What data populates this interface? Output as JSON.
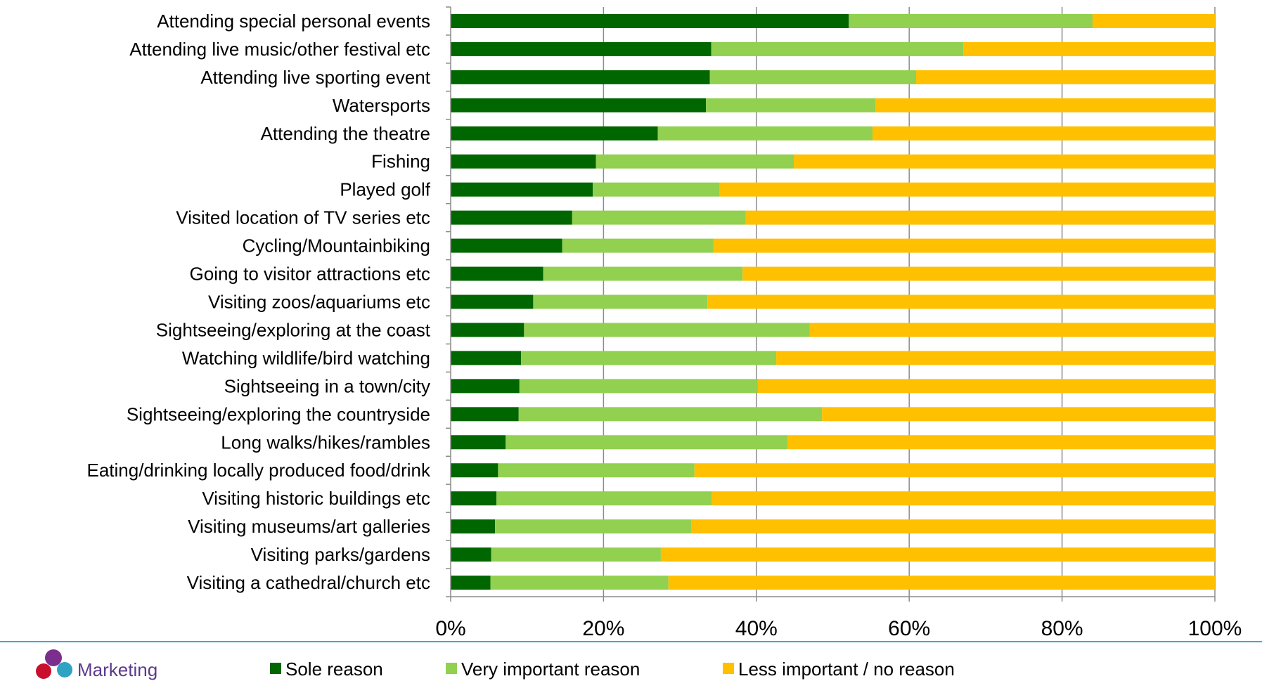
{
  "chart_data": {
    "type": "bar",
    "orientation": "horizontal",
    "stacked": "percent",
    "categories": [
      "Attending special personal events",
      "Attending live music/other festival etc",
      "Attending live sporting event",
      "Watersports",
      "Attending the theatre",
      "Fishing",
      "Played golf",
      "Visited  location of TV series etc",
      "Cycling/Mountainbiking",
      "Going to visitor attractions etc",
      "Visiting zoos/aquariums etc",
      "Sightseeing/exploring at the coast",
      "Watching wildlife/bird watching",
      "Sightseeing in a town/city",
      "Sightseeing/exploring the countryside",
      "Long walks/hikes/rambles",
      "Eating/drinking locally produced food/drink",
      "Visiting historic buildings etc",
      "Visiting museums/art galleries",
      "Visiting parks/gardens",
      "Visiting a cathedral/church etc"
    ],
    "series": [
      {
        "name": "Sole reason",
        "color": "#006600",
        "values": [
          52.1,
          34.1,
          33.9,
          33.4,
          27.1,
          19.0,
          18.6,
          15.9,
          14.6,
          12.1,
          10.8,
          9.6,
          9.2,
          9.0,
          8.9,
          7.2,
          6.2,
          6.0,
          5.8,
          5.3,
          5.2
        ]
      },
      {
        "name": "Very important reason",
        "color": "#92d050",
        "values": [
          31.9,
          33.0,
          27.0,
          22.2,
          28.1,
          25.9,
          16.6,
          22.7,
          19.8,
          26.1,
          22.8,
          37.4,
          33.4,
          31.2,
          39.7,
          36.9,
          25.7,
          28.2,
          25.7,
          22.2,
          23.3
        ]
      },
      {
        "name": "Less important / no reason",
        "color": "#ffc000",
        "values": [
          16.0,
          32.9,
          39.1,
          44.4,
          44.8,
          55.1,
          64.8,
          61.4,
          65.6,
          61.8,
          66.4,
          53.0,
          57.4,
          59.8,
          51.4,
          55.9,
          68.1,
          65.8,
          68.5,
          72.5,
          71.5
        ]
      }
    ],
    "xlim": [
      0,
      100
    ],
    "x_ticks": [
      "0%",
      "20%",
      "40%",
      "60%",
      "80%",
      "100%"
    ],
    "grid": "vertical",
    "legend": "bottom"
  },
  "footer": {
    "logo_text": "Marketing",
    "logo_colors": [
      "#7b2e8e",
      "#2ea3c4",
      "#c8102e"
    ]
  }
}
